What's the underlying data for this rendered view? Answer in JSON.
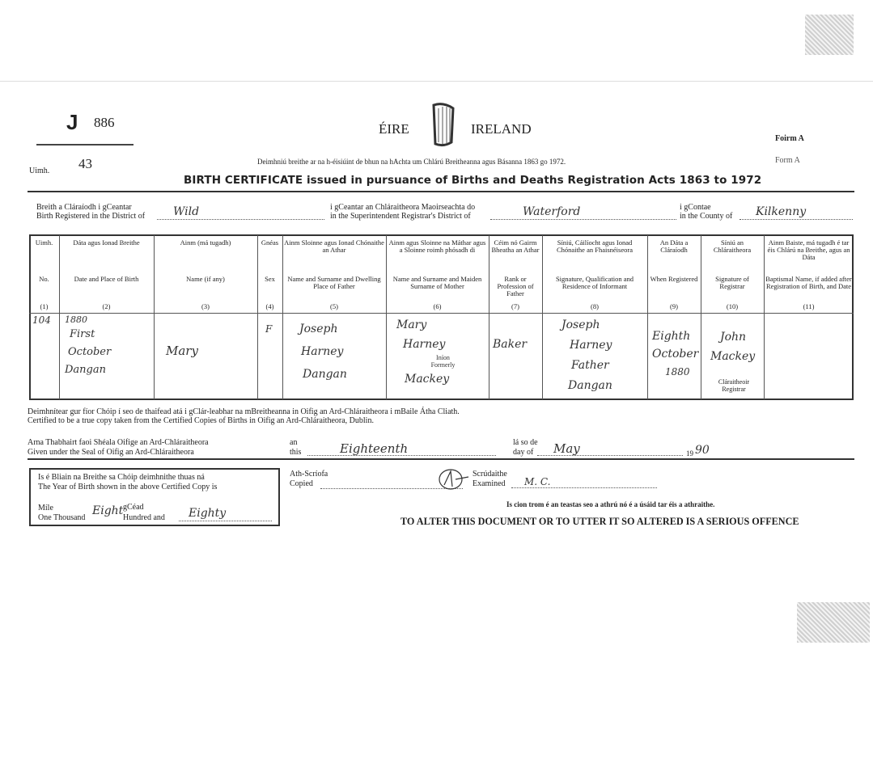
{
  "header": {
    "serial_letter": "J",
    "serial_number": "886",
    "uimh_label": "Uimh.",
    "uimh_value": "43",
    "eire": "ÉIRE",
    "ireland": "IRELAND",
    "form_irish": "Foirm A",
    "form_english": "Form A",
    "subtitle_irish": "Deimhniú breithe ar na h-éisiúint de bhun na hAchta um Chlárú Breitheanna agus Básanna 1863 go 1972.",
    "title": "BIRTH CERTIFICATE issued in pursuance of Births and Deaths Registration Acts 1863 to 1972",
    "emblem": "harp-icon"
  },
  "district": {
    "district_irish": "Breith a Cláraíodh i gCeantar",
    "district_english": "Birth Registered in the District of",
    "district_value": "Wild",
    "superintendent_irish": "i gCeantar an Chláraitheora Maoirseachta do",
    "superintendent_english": "in the Superintendent Registrar's District of",
    "superintendent_value": "Waterford",
    "county_irish": "i gContae",
    "county_english": "in the County of",
    "county_value": "Kilkenny"
  },
  "table": {
    "columns": [
      {
        "irish": "Uimh.",
        "english": "No.",
        "num": "(1)"
      },
      {
        "irish": "Dáta agus Ionad Breithe",
        "english": "Date and Place of Birth",
        "num": "(2)"
      },
      {
        "irish": "Ainm (má tugadh)",
        "english": "Name (if any)",
        "num": "(3)"
      },
      {
        "irish": "Gnéas",
        "english": "Sex",
        "num": "(4)"
      },
      {
        "irish": "Ainm Sloinne agus Ionad Chónaithe an Athar",
        "english": "Name and Surname and Dwelling Place of Father",
        "num": "(5)"
      },
      {
        "irish": "Ainm agus Sloinne na Máthar agus a Sloinne roimh phósadh di",
        "english": "Name and Surname and Maiden Surname of Mother",
        "num": "(6)"
      },
      {
        "irish": "Céim nó Gairm Bheatha an Athar",
        "english": "Rank or Profession of Father",
        "num": "(7)"
      },
      {
        "irish": "Síniú, Cáilíocht agus Ionad Chónaithe an Fhaisnéiseora",
        "english": "Signature, Qualification and Residence of Informant",
        "num": "(8)"
      },
      {
        "irish": "An Dáta a Cláraíodh",
        "english": "When Registered",
        "num": "(9)"
      },
      {
        "irish": "Síniú an Chláraitheora",
        "english": "Signature of Registrar",
        "num": "(10)"
      },
      {
        "irish": "Ainm Baiste, má tugadh é tar éis Chlárú na Breithe, agus an Dáta",
        "english": "Baptismal Name, if added after Registration of Birth, and Date",
        "num": "(11)"
      }
    ],
    "row": {
      "no": "104",
      "date_place": [
        "1880",
        "First",
        "October",
        "Dangan"
      ],
      "name": "Mary",
      "sex": "F",
      "father": [
        "Joseph",
        "Harney",
        "Dangan"
      ],
      "mother": [
        "Mary",
        "Harney",
        "Mackey"
      ],
      "mother_infon": "Iníon",
      "mother_formerly": "Formerly",
      "profession": "Baker",
      "informant": [
        "Joseph",
        "Harney",
        "Father",
        "Dangan"
      ],
      "registered": [
        "Eighth",
        "October",
        "1880"
      ],
      "registrar": [
        "John",
        "Mackey"
      ],
      "registrar_irish": "Cláraitheoir",
      "registrar_english": "Registrar",
      "baptismal": ""
    }
  },
  "certification": {
    "irish": "Deimhnítear gur fíor Chóip í seo de thaifead atá i gClár-leabhar na mBreitheanna in Oifig an Ard-Chláraitheora i mBaile Átha Cliath.",
    "english": "Certified to be a true copy taken from the Certified Copies of Births in Oifig an Ard-Chláraitheora, Dublin.",
    "seal_irish": "Arna Thabhairt faoi Shéala Oifige an Ard-Chláraitheora",
    "seal_english": "Given under the Seal of Oifig an Ard-Chláraitheora",
    "an": "an",
    "this": "this",
    "day_value": "Eighteenth",
    "la_so_de": "lá so de",
    "day_of": "day of",
    "month_value": "May",
    "year_prefix": "19",
    "year_value": "90"
  },
  "year_box": {
    "irish": "Is é Bliain na Breithe sa Chóip deimhnithe thuas ná",
    "english": "The Year of Birth shown in the above Certified Copy is",
    "mile": "Míle",
    "gcead": "gCéad",
    "one_thousand": "One Thousand",
    "hundreds_value": "Eight",
    "hundred_and": "Hundred and",
    "tens_value": "Eighty"
  },
  "copy": {
    "copied_irish": "Ath-Scríofa",
    "copied_english": "Copied",
    "examined_irish": "Scrúdaithe",
    "examined_english": "Examined",
    "examined_value": "M. C."
  },
  "warning": {
    "irish": "Is cion trom é an teastas seo a athrú nó é a úsáid tar éis a athraithe.",
    "english": "TO ALTER THIS DOCUMENT OR TO UTTER IT SO ALTERED IS A SERIOUS OFFENCE"
  }
}
